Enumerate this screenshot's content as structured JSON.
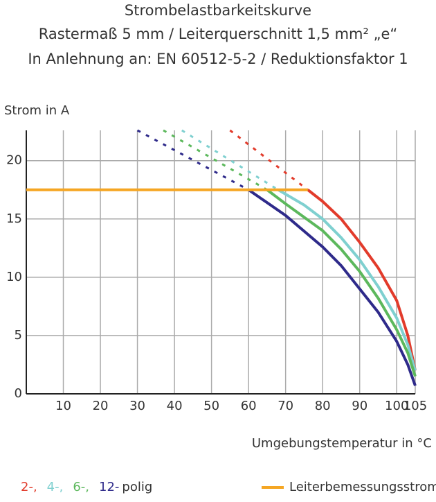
{
  "chart_data": {
    "type": "line",
    "title": "Strombelastbarkeitskurve",
    "subtitle": "Rastermaß 5 mm / Leiterquerschnitt 1,5 mm² „e“",
    "subtitle2": "In Anlehnung an: EN 60512-5-2 / Reduktionsfaktor 1",
    "y_label": "Strom in A",
    "x_label": "Umgebungstemperatur in °C",
    "xlim": [
      0,
      105
    ],
    "xticks": [
      10,
      20,
      30,
      40,
      50,
      60,
      70,
      80,
      90,
      100,
      105
    ],
    "ylim": [
      0,
      22.6
    ],
    "yticks": [
      0,
      5,
      10,
      15,
      20
    ],
    "grid": true,
    "legend_suffix": "polig",
    "series": [
      {
        "name": "2-,",
        "color": "#e23b2b",
        "x": [
          76,
          80,
          85,
          90,
          95,
          100,
          103,
          105
        ],
        "values": [
          17.5,
          16.5,
          15,
          13,
          10.8,
          8,
          5,
          2
        ],
        "extension": {
          "x": [
            55,
            76
          ],
          "values": [
            22.6,
            17.5
          ]
        }
      },
      {
        "name": "4-,",
        "color": "#7fd0d0",
        "x": [
          68,
          75,
          80,
          85,
          90,
          95,
          100,
          103,
          105
        ],
        "values": [
          17.5,
          16.2,
          15,
          13.4,
          11.5,
          9.2,
          6.5,
          4.2,
          2
        ],
        "extension": {
          "x": [
            42,
            68
          ],
          "values": [
            22.6,
            17.5
          ]
        }
      },
      {
        "name": "6-,",
        "color": "#5cb85c",
        "x": [
          65,
          70,
          80,
          85,
          90,
          95,
          100,
          103,
          105
        ],
        "values": [
          17.5,
          16.3,
          14,
          12.4,
          10.5,
          8.2,
          5.5,
          3.5,
          1.5
        ],
        "extension": {
          "x": [
            37,
            65
          ],
          "values": [
            22.6,
            17.5
          ]
        }
      },
      {
        "name": "12-",
        "color": "#2e2a8a",
        "x": [
          60,
          70,
          80,
          85,
          90,
          95,
          100,
          103,
          105
        ],
        "values": [
          17.5,
          15.3,
          12.6,
          11,
          9,
          7,
          4.5,
          2.5,
          0.7
        ],
        "extension": {
          "x": [
            30,
            60
          ],
          "values": [
            22.6,
            17.5
          ]
        }
      },
      {
        "name": "Leiterbemessungsstrom",
        "color": "#f5a623",
        "x": [
          0,
          76
        ],
        "values": [
          17.5,
          17.5
        ]
      }
    ]
  }
}
